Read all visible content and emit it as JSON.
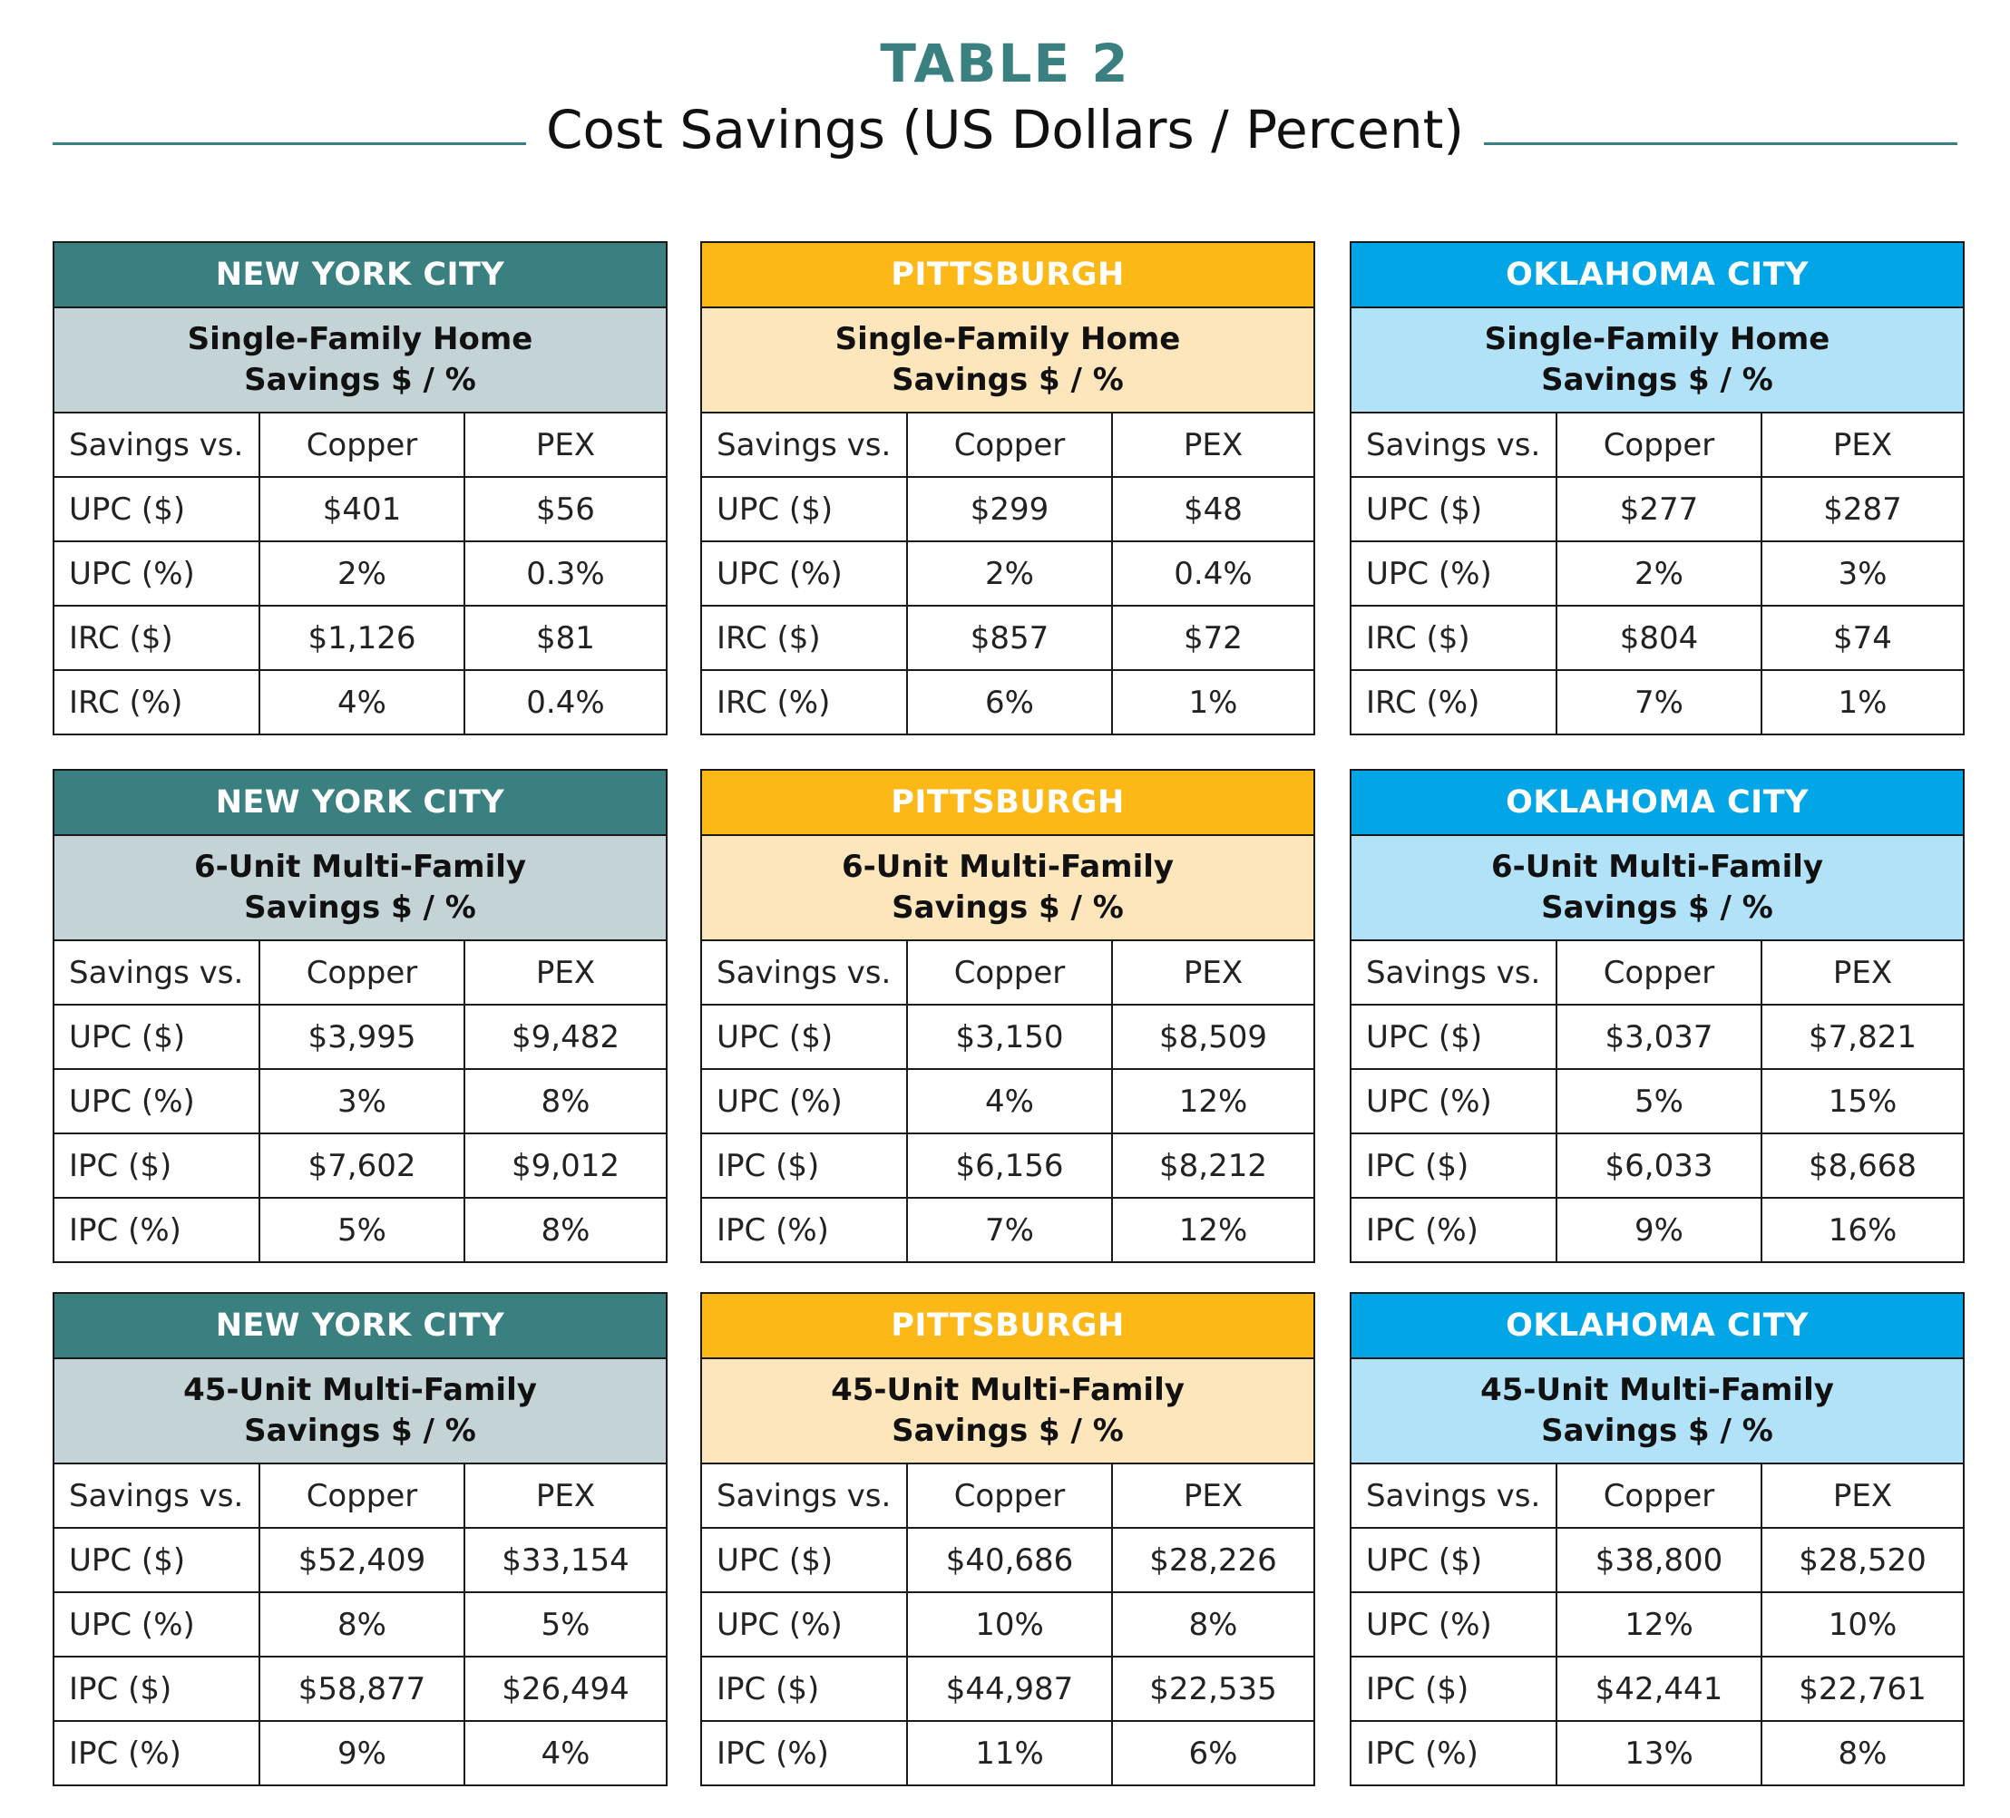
{
  "title": {
    "table_number": "TABLE 2",
    "subtitle": "Cost Savings (US Dollars / Percent)"
  },
  "colors": {
    "accent": "#3a8080",
    "nyc_header": "#3a8080",
    "nyc_sub": "#c4d3d5",
    "pit_header": "#fbb817",
    "pit_sub": "#fde5bc",
    "okc_header": "#02a6e6",
    "okc_sub": "#b2e2f8"
  },
  "column_headers": [
    "Savings vs.",
    "Copper",
    "PEX"
  ],
  "panels": [
    {
      "city": "NEW YORK CITY",
      "type_line1": "Single-Family Home",
      "type_line2": "Savings $ / %",
      "rows": [
        {
          "label": "UPC ($)",
          "copper": "$401",
          "pex": "$56"
        },
        {
          "label": "UPC (%)",
          "copper": "2%",
          "pex": "0.3%"
        },
        {
          "label": "IRC ($)",
          "copper": "$1,126",
          "pex": "$81"
        },
        {
          "label": "IRC (%)",
          "copper": "4%",
          "pex": "0.4%"
        }
      ]
    },
    {
      "city": "PITTSBURGH",
      "type_line1": "Single-Family Home",
      "type_line2": "Savings $ / %",
      "rows": [
        {
          "label": "UPC ($)",
          "copper": "$299",
          "pex": "$48"
        },
        {
          "label": "UPC (%)",
          "copper": "2%",
          "pex": "0.4%"
        },
        {
          "label": "IRC ($)",
          "copper": "$857",
          "pex": "$72"
        },
        {
          "label": "IRC (%)",
          "copper": "6%",
          "pex": "1%"
        }
      ]
    },
    {
      "city": "OKLAHOMA CITY",
      "type_line1": "Single-Family Home",
      "type_line2": "Savings $ / %",
      "rows": [
        {
          "label": "UPC ($)",
          "copper": "$277",
          "pex": "$287"
        },
        {
          "label": "UPC (%)",
          "copper": "2%",
          "pex": "3%"
        },
        {
          "label": "IRC ($)",
          "copper": "$804",
          "pex": "$74"
        },
        {
          "label": "IRC (%)",
          "copper": "7%",
          "pex": "1%"
        }
      ]
    },
    {
      "city": "NEW YORK CITY",
      "type_line1": "6-Unit Multi-Family",
      "type_line2": "Savings $ / %",
      "rows": [
        {
          "label": "UPC ($)",
          "copper": "$3,995",
          "pex": "$9,482"
        },
        {
          "label": "UPC (%)",
          "copper": "3%",
          "pex": "8%"
        },
        {
          "label": "IPC ($)",
          "copper": "$7,602",
          "pex": "$9,012"
        },
        {
          "label": "IPC (%)",
          "copper": "5%",
          "pex": "8%"
        }
      ]
    },
    {
      "city": "PITTSBURGH",
      "type_line1": "6-Unit Multi-Family",
      "type_line2": "Savings $ / %",
      "rows": [
        {
          "label": "UPC ($)",
          "copper": "$3,150",
          "pex": "$8,509"
        },
        {
          "label": "UPC (%)",
          "copper": "4%",
          "pex": "12%"
        },
        {
          "label": "IPC ($)",
          "copper": "$6,156",
          "pex": "$8,212"
        },
        {
          "label": "IPC (%)",
          "copper": "7%",
          "pex": "12%"
        }
      ]
    },
    {
      "city": "OKLAHOMA CITY",
      "type_line1": "6-Unit Multi-Family",
      "type_line2": "Savings $ / %",
      "rows": [
        {
          "label": "UPC ($)",
          "copper": "$3,037",
          "pex": "$7,821"
        },
        {
          "label": "UPC (%)",
          "copper": "5%",
          "pex": "15%"
        },
        {
          "label": "IPC ($)",
          "copper": "$6,033",
          "pex": "$8,668"
        },
        {
          "label": "IPC (%)",
          "copper": "9%",
          "pex": "16%"
        }
      ]
    },
    {
      "city": "NEW YORK CITY",
      "type_line1": "45-Unit Multi-Family",
      "type_line2": "Savings $ / %",
      "rows": [
        {
          "label": "UPC ($)",
          "copper": "$52,409",
          "pex": "$33,154"
        },
        {
          "label": "UPC (%)",
          "copper": "8%",
          "pex": "5%"
        },
        {
          "label": "IPC ($)",
          "copper": "$58,877",
          "pex": "$26,494"
        },
        {
          "label": "IPC (%)",
          "copper": "9%",
          "pex": "4%"
        }
      ]
    },
    {
      "city": "PITTSBURGH",
      "type_line1": "45-Unit Multi-Family",
      "type_line2": "Savings $ / %",
      "rows": [
        {
          "label": "UPC ($)",
          "copper": "$40,686",
          "pex": "$28,226"
        },
        {
          "label": "UPC (%)",
          "copper": "10%",
          "pex": "8%"
        },
        {
          "label": "IPC ($)",
          "copper": "$44,987",
          "pex": "$22,535"
        },
        {
          "label": "IPC (%)",
          "copper": "11%",
          "pex": "6%"
        }
      ]
    },
    {
      "city": "OKLAHOMA CITY",
      "type_line1": "45-Unit Multi-Family",
      "type_line2": "Savings $ / %",
      "rows": [
        {
          "label": "UPC ($)",
          "copper": "$38,800",
          "pex": "$28,520"
        },
        {
          "label": "UPC (%)",
          "copper": "12%",
          "pex": "10%"
        },
        {
          "label": "IPC ($)",
          "copper": "$42,441",
          "pex": "$22,761"
        },
        {
          "label": "IPC (%)",
          "copper": "13%",
          "pex": "8%"
        }
      ]
    }
  ]
}
